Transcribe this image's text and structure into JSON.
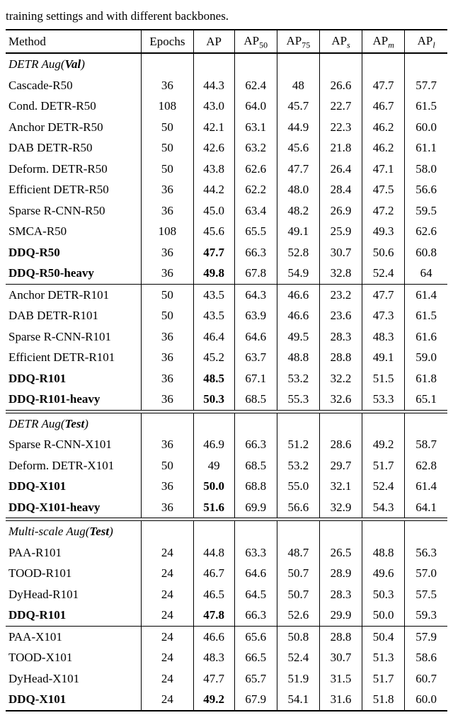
{
  "caption_prefix": "training settings and with different backbones.",
  "header": {
    "method": "Method",
    "epochs": "Epochs",
    "ap": "AP",
    "ap50_base": "AP",
    "ap50_sub": "50",
    "ap75_base": "AP",
    "ap75_sub": "75",
    "aps_base": "AP",
    "aps_sub": "s",
    "apm_base": "AP",
    "apm_sub": "m",
    "apl_base": "AP",
    "apl_sub": "l"
  },
  "sections": [
    {
      "title_italic": "DETR Aug",
      "title_bold_paren": "(Val)",
      "top_border": "bt2",
      "rows": [
        {
          "m": "Cascade-R50",
          "bold": false,
          "e": "36",
          "v": [
            "44.3",
            "62.4",
            "48",
            "26.6",
            "47.7",
            "57.7"
          ],
          "vb": [
            false,
            false,
            false,
            false,
            false,
            false
          ]
        },
        {
          "m": "Cond. DETR-R50",
          "bold": false,
          "e": "108",
          "v": [
            "43.0",
            "64.0",
            "45.7",
            "22.7",
            "46.7",
            "61.5"
          ],
          "vb": [
            false,
            false,
            false,
            false,
            false,
            false
          ]
        },
        {
          "m": "Anchor DETR-R50",
          "bold": false,
          "e": "50",
          "v": [
            "42.1",
            "63.1",
            "44.9",
            "22.3",
            "46.2",
            "60.0"
          ],
          "vb": [
            false,
            false,
            false,
            false,
            false,
            false
          ]
        },
        {
          "m": "DAB DETR-R50",
          "bold": false,
          "e": "50",
          "v": [
            "42.6",
            "63.2",
            "45.6",
            "21.8",
            "46.2",
            "61.1"
          ],
          "vb": [
            false,
            false,
            false,
            false,
            false,
            false
          ]
        },
        {
          "m": "Deform. DETR-R50",
          "bold": false,
          "e": "50",
          "v": [
            "43.8",
            "62.6",
            "47.7",
            "26.4",
            "47.1",
            "58.0"
          ],
          "vb": [
            false,
            false,
            false,
            false,
            false,
            false
          ]
        },
        {
          "m": "Efficient DETR-R50",
          "bold": false,
          "e": "36",
          "v": [
            "44.2",
            "62.2",
            "48.0",
            "28.4",
            "47.5",
            "56.6"
          ],
          "vb": [
            false,
            false,
            false,
            false,
            false,
            false
          ]
        },
        {
          "m": "Sparse R-CNN-R50",
          "bold": false,
          "e": "36",
          "v": [
            "45.0",
            "63.4",
            "48.2",
            "26.9",
            "47.2",
            "59.5"
          ],
          "vb": [
            false,
            false,
            false,
            false,
            false,
            false
          ]
        },
        {
          "m": "SMCA-R50",
          "bold": false,
          "e": "108",
          "v": [
            "45.6",
            "65.5",
            "49.1",
            "25.9",
            "49.3",
            "62.6"
          ],
          "vb": [
            false,
            false,
            false,
            false,
            false,
            false
          ]
        },
        {
          "m": "DDQ-R50",
          "bold": true,
          "e": "36",
          "v": [
            "47.7",
            "66.3",
            "52.8",
            "30.7",
            "50.6",
            "60.8"
          ],
          "vb": [
            true,
            false,
            false,
            false,
            false,
            false
          ]
        },
        {
          "m": "DDQ-R50-heavy",
          "bold": true,
          "e": "36",
          "v": [
            "49.8",
            "67.8",
            "54.9",
            "32.8",
            "52.4",
            "64"
          ],
          "vb": [
            true,
            false,
            false,
            false,
            false,
            false
          ]
        }
      ],
      "subdivider_after": null
    },
    {
      "title_italic": null,
      "top_border": "bt1",
      "rows": [
        {
          "m": "Anchor DETR-R101",
          "bold": false,
          "e": "50",
          "v": [
            "43.5",
            "64.3",
            "46.6",
            "23.2",
            "47.7",
            "61.4"
          ],
          "vb": [
            false,
            false,
            false,
            false,
            false,
            false
          ]
        },
        {
          "m": "DAB DETR-R101",
          "bold": false,
          "e": "50",
          "v": [
            "43.5",
            "63.9",
            "46.6",
            "23.6",
            "47.3",
            "61.5"
          ],
          "vb": [
            false,
            false,
            false,
            false,
            false,
            false
          ]
        },
        {
          "m": "Sparse R-CNN-R101",
          "bold": false,
          "e": "36",
          "v": [
            "46.4",
            "64.6",
            "49.5",
            "28.3",
            "48.3",
            "61.6"
          ],
          "vb": [
            false,
            false,
            false,
            false,
            false,
            false
          ]
        },
        {
          "m": "Efficient DETR-R101",
          "bold": false,
          "e": "36",
          "v": [
            "45.2",
            "63.7",
            "48.8",
            "28.8",
            "49.1",
            "59.0"
          ],
          "vb": [
            false,
            false,
            false,
            false,
            false,
            false
          ]
        },
        {
          "m": "DDQ-R101",
          "bold": true,
          "e": "36",
          "v": [
            "48.5",
            "67.1",
            "53.2",
            "32.2",
            "51.5",
            "61.8"
          ],
          "vb": [
            true,
            false,
            false,
            false,
            false,
            false
          ]
        },
        {
          "m": "DDQ-R101-heavy",
          "bold": true,
          "e": "36",
          "v": [
            "50.3",
            "68.5",
            "55.3",
            "32.6",
            "53.3",
            "65.1"
          ],
          "vb": [
            true,
            false,
            false,
            false,
            false,
            false
          ]
        }
      ]
    },
    {
      "title_italic": "DETR Aug",
      "title_bold_paren": "(Test)",
      "top_border": "double",
      "rows": [
        {
          "m": "Sparse R-CNN-X101",
          "bold": false,
          "e": "36",
          "v": [
            "46.9",
            "66.3",
            "51.2",
            "28.6",
            "49.2",
            "58.7"
          ],
          "vb": [
            false,
            false,
            false,
            false,
            false,
            false
          ]
        },
        {
          "m": "Deform. DETR-X101",
          "bold": false,
          "e": "50",
          "v": [
            "49",
            "68.5",
            "53.2",
            "29.7",
            "51.7",
            "62.8"
          ],
          "vb": [
            false,
            false,
            false,
            false,
            false,
            false
          ]
        },
        {
          "m": "DDQ-X101",
          "bold": true,
          "e": "36",
          "v": [
            "50.0",
            "68.8",
            "55.0",
            "32.1",
            "52.4",
            "61.4"
          ],
          "vb": [
            true,
            false,
            false,
            false,
            false,
            false
          ]
        },
        {
          "m": "DDQ-X101-heavy",
          "bold": true,
          "e": "36",
          "v": [
            "51.6",
            "69.9",
            "56.6",
            "32.9",
            "54.3",
            "64.1"
          ],
          "vb": [
            true,
            false,
            false,
            false,
            false,
            false
          ]
        }
      ]
    },
    {
      "title_italic": "Multi-scale Aug",
      "title_bold_paren": "(Test)",
      "top_border": "double",
      "rows": [
        {
          "m": "PAA-R101",
          "bold": false,
          "e": "24",
          "v": [
            "44.8",
            "63.3",
            "48.7",
            "26.5",
            "48.8",
            "56.3"
          ],
          "vb": [
            false,
            false,
            false,
            false,
            false,
            false
          ]
        },
        {
          "m": "TOOD-R101",
          "bold": false,
          "e": "24",
          "v": [
            "46.7",
            "64.6",
            "50.7",
            "28.9",
            "49.6",
            "57.0"
          ],
          "vb": [
            false,
            false,
            false,
            false,
            false,
            false
          ]
        },
        {
          "m": "DyHead-R101",
          "bold": false,
          "e": "24",
          "v": [
            "46.5",
            "64.5",
            "50.7",
            "28.3",
            "50.3",
            "57.5"
          ],
          "vb": [
            false,
            false,
            false,
            false,
            false,
            false
          ]
        },
        {
          "m": "DDQ-R101",
          "bold": true,
          "e": "24",
          "v": [
            "47.8",
            "66.3",
            "52.6",
            "29.9",
            "50.0",
            "59.3"
          ],
          "vb": [
            true,
            false,
            false,
            false,
            false,
            false
          ]
        }
      ]
    },
    {
      "title_italic": null,
      "top_border": "bt1",
      "rows": [
        {
          "m": "PAA-X101",
          "bold": false,
          "e": "24",
          "v": [
            "46.6",
            "65.6",
            "50.8",
            "28.8",
            "50.4",
            "57.9"
          ],
          "vb": [
            false,
            false,
            false,
            false,
            false,
            false
          ]
        },
        {
          "m": "TOOD-X101",
          "bold": false,
          "e": "24",
          "v": [
            "48.3",
            "66.5",
            "52.4",
            "30.7",
            "51.3",
            "58.6"
          ],
          "vb": [
            false,
            false,
            false,
            false,
            false,
            false
          ]
        },
        {
          "m": "DyHead-X101",
          "bold": false,
          "e": "24",
          "v": [
            "47.7",
            "65.7",
            "51.9",
            "31.5",
            "51.7",
            "60.7"
          ],
          "vb": [
            false,
            false,
            false,
            false,
            false,
            false
          ]
        },
        {
          "m": "DDQ-X101",
          "bold": true,
          "e": "24",
          "v": [
            "49.2",
            "67.9",
            "54.1",
            "31.6",
            "51.8",
            "60.0"
          ],
          "vb": [
            true,
            false,
            false,
            false,
            false,
            false
          ]
        }
      ],
      "bottom_border": "bb2"
    }
  ]
}
